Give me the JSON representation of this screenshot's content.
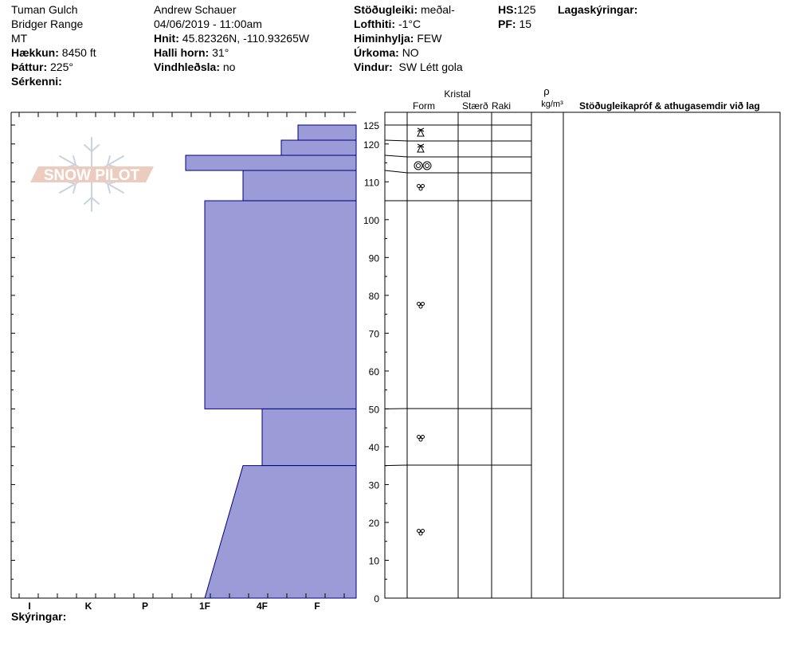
{
  "header": {
    "location": "Tuman Gulch",
    "range": "Bridger Range",
    "state": "MT",
    "elevation_label": "Hækkun:",
    "elevation_value": "8450 ft",
    "aspect_label": "Þáttur:",
    "aspect_value": "225°",
    "features_label": "Sérkenni:",
    "observer": "Andrew Schauer",
    "datetime": "04/06/2019 - 11:00am",
    "coords_label": "Hnit:",
    "coords_value": "45.82326N, -110.93265W",
    "slope_label": "Halli horn:",
    "slope_value": "31°",
    "wind_loading_label": "Vindhleðsla:",
    "wind_loading_value": "no",
    "stability_label": "Stöðugleiki:",
    "stability_value": "meðal-",
    "air_temp_label": "Lofthiti:",
    "air_temp_value": "-1°C",
    "sky_label": "Himinhylja:",
    "sky_value": "FEW",
    "precip_label": "Úrkoma:",
    "precip_value": "NO",
    "wind_label": "Vindur:",
    "wind_value": "SW Létt gola",
    "hs_label": "HS:",
    "hs_value": "125",
    "pf_label": "PF:",
    "pf_value": "15",
    "layer_notes_label": "Lagaskýringar:",
    "comments_label": "Skýringar:"
  },
  "watermark": {
    "text": "SNOW PILOT"
  },
  "table_headers": {
    "crystal": "Kristal",
    "form": "Form",
    "size": "Stærð",
    "moisture": "Raki",
    "rho": "ρ",
    "density_unit": "kg/m³",
    "stability_tests": "Stöðugleikapróf & athugasemdir við lag"
  },
  "colors": {
    "layer_fill": "#9b9bd7",
    "layer_stroke": "#00007f",
    "watermark": "#e8c4b4"
  },
  "chart_data": {
    "type": "area",
    "x_axis": {
      "labels": [
        "I",
        "K",
        "P",
        "1F",
        "4F",
        "F"
      ],
      "scale": "hand hardness index"
    },
    "y_axis": {
      "min": 0,
      "max": 125,
      "tick_labels": [
        0,
        10,
        20,
        30,
        40,
        50,
        60,
        70,
        80,
        90,
        100,
        110,
        120,
        125
      ]
    },
    "layers": [
      {
        "top": 125,
        "bottom": 121,
        "hardness": "F+",
        "form": "faceted-rounded"
      },
      {
        "top": 121,
        "bottom": 117,
        "hardness": "4F-",
        "form": "faceted-rounded"
      },
      {
        "top": 117,
        "bottom": 113,
        "hardness": "1F+",
        "form": "melt-freeze crust"
      },
      {
        "top": 113,
        "bottom": 105,
        "hardness": "4F+",
        "form": "rounded grains"
      },
      {
        "top": 105,
        "bottom": 50,
        "hardness": "1F",
        "form": "rounded grains"
      },
      {
        "top": 50,
        "bottom": 35,
        "hardness": "4F",
        "form": "rounded grains"
      },
      {
        "top": 35,
        "bottom": 0,
        "hardness_top": "4F+",
        "hardness_bottom": "1F",
        "form": "rounded grains"
      }
    ]
  }
}
